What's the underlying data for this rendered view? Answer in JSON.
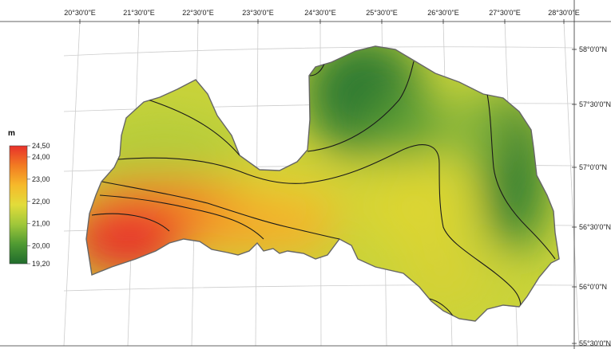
{
  "map": {
    "region": "Latvia",
    "legend": {
      "title": "m",
      "min": 19.2,
      "max": 24.5,
      "labels": [
        "24,50",
        "24,00",
        "23,00",
        "22,00",
        "21,00",
        "20,00",
        "19,20"
      ],
      "colors": [
        "#1f6b2c",
        "#4f9a32",
        "#9fc73a",
        "#e2dc3a",
        "#f6b92a",
        "#f27b22",
        "#e8312a"
      ]
    },
    "top_ticks": [
      "20°30'0\"E",
      "21°30'0\"E",
      "22°30'0\"E",
      "23°30'0\"E",
      "24°30'0\"E",
      "25°30'0\"E",
      "26°30'0\"E",
      "27°30'0\"E",
      "28°30'0\"E"
    ],
    "right_ticks": [
      "58°0'0\"N",
      "57°30'0\"N",
      "57°0'0\"N",
      "56°30'0\"N",
      "56°0'0\"N",
      "55°30'0\"N"
    ],
    "graticule_color": "#cccccc",
    "border_color": "#666666",
    "contour_color": "#1a1a1a"
  }
}
